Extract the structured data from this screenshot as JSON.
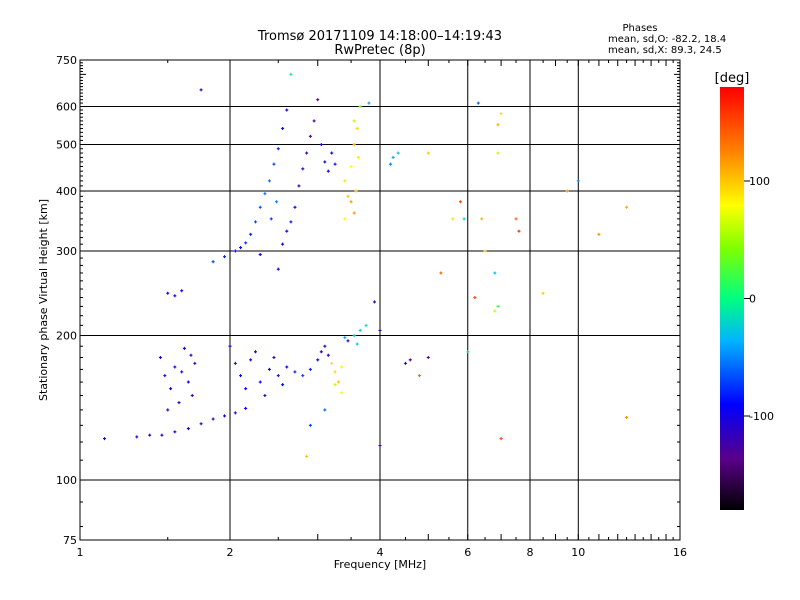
{
  "chart_data": {
    "type": "scatter",
    "title": "Tromsø 20171109 14:18:00–14:19:43",
    "subtitle": "RwPretec (8p)",
    "xlabel": "Frequency [MHz]",
    "ylabel": "Stationary phase Virtual Height [km]",
    "x_scale": "log",
    "y_scale": "log",
    "xlim": [
      1,
      16
    ],
    "ylim": [
      75,
      750
    ],
    "x_ticks": [
      1,
      2,
      4,
      6,
      8,
      10,
      16
    ],
    "y_ticks": [
      75,
      100,
      200,
      300,
      400,
      500,
      600,
      750
    ],
    "x_grid": [
      2,
      4,
      6,
      8,
      10
    ],
    "y_grid": [
      100,
      200,
      300,
      400,
      500,
      600
    ],
    "grid": true,
    "stats_heading": "Phases",
    "stats": [
      "mean, sd,O: -82.2, 18.4",
      "mean, sd,X:  89.3, 24.5"
    ],
    "colorbar": {
      "label": "[deg]",
      "range": [
        -180,
        180
      ],
      "ticks": [
        100,
        0,
        -100
      ]
    },
    "series": [
      {
        "points": [
          [
            1.12,
            122,
            -110
          ],
          [
            1.3,
            123,
            -105
          ],
          [
            1.38,
            124,
            -108
          ],
          [
            1.46,
            124,
            -112
          ],
          [
            1.55,
            126,
            -106
          ],
          [
            1.65,
            128,
            -100
          ],
          [
            1.75,
            131,
            -104
          ],
          [
            1.85,
            134,
            -110
          ],
          [
            1.95,
            136,
            -98
          ],
          [
            2.05,
            138,
            -102
          ],
          [
            2.15,
            141,
            -95
          ],
          [
            1.45,
            180,
            -100
          ],
          [
            1.48,
            165,
            -98
          ],
          [
            1.52,
            155,
            -92
          ],
          [
            1.55,
            172,
            -105
          ],
          [
            1.58,
            145,
            -108
          ],
          [
            1.62,
            188,
            -95
          ],
          [
            1.65,
            160,
            -100
          ],
          [
            1.68,
            150,
            -115
          ],
          [
            1.7,
            175,
            -110
          ],
          [
            1.5,
            140,
            -120
          ],
          [
            1.6,
            168,
            -90
          ],
          [
            1.67,
            182,
            -102
          ],
          [
            2.0,
            190,
            -100
          ],
          [
            2.05,
            175,
            -98
          ],
          [
            2.1,
            165,
            -90
          ],
          [
            2.15,
            155,
            -95
          ],
          [
            2.2,
            178,
            -105
          ],
          [
            2.25,
            185,
            -100
          ],
          [
            2.3,
            160,
            -94
          ],
          [
            2.35,
            150,
            -108
          ],
          [
            2.4,
            170,
            -102
          ],
          [
            2.45,
            180,
            -96
          ],
          [
            2.5,
            165,
            -110
          ],
          [
            2.55,
            158,
            -88
          ],
          [
            2.6,
            172,
            -92
          ],
          [
            2.7,
            168,
            -85
          ],
          [
            2.8,
            165,
            -75
          ],
          [
            2.9,
            170,
            -80
          ],
          [
            3.0,
            178,
            -95
          ],
          [
            3.05,
            185,
            -100
          ],
          [
            3.1,
            190,
            -105
          ],
          [
            3.15,
            182,
            -110
          ],
          [
            3.2,
            175,
            90
          ],
          [
            3.25,
            168,
            95
          ],
          [
            3.3,
            160,
            100
          ],
          [
            3.35,
            152,
            80
          ],
          [
            3.25,
            158,
            60
          ],
          [
            3.35,
            172,
            75
          ],
          [
            3.45,
            195,
            -120
          ],
          [
            3.55,
            200,
            -30
          ],
          [
            3.65,
            205,
            -20
          ],
          [
            3.75,
            210,
            -10
          ],
          [
            3.4,
            198,
            -40
          ],
          [
            3.6,
            192,
            -25
          ],
          [
            4.0,
            205,
            -110
          ],
          [
            3.9,
            235,
            -120
          ],
          [
            4.0,
            118,
            -120
          ],
          [
            2.85,
            112,
            100
          ],
          [
            1.85,
            285,
            -70
          ],
          [
            1.95,
            292,
            -80
          ],
          [
            2.05,
            300,
            -90
          ],
          [
            2.1,
            305,
            -85
          ],
          [
            2.15,
            312,
            -75
          ],
          [
            2.2,
            325,
            -80
          ],
          [
            2.25,
            345,
            -70
          ],
          [
            2.3,
            370,
            -65
          ],
          [
            2.35,
            395,
            -55
          ],
          [
            2.4,
            420,
            -60
          ],
          [
            2.45,
            455,
            -70
          ],
          [
            2.5,
            490,
            -80
          ],
          [
            2.55,
            540,
            -85
          ],
          [
            2.6,
            590,
            -100
          ],
          [
            2.48,
            380,
            -50
          ],
          [
            2.42,
            350,
            -75
          ],
          [
            2.55,
            310,
            -100
          ],
          [
            2.6,
            330,
            -90
          ],
          [
            2.65,
            345,
            -85
          ],
          [
            2.7,
            370,
            -88
          ],
          [
            2.75,
            410,
            -110
          ],
          [
            2.8,
            445,
            -115
          ],
          [
            2.85,
            480,
            -120
          ],
          [
            2.9,
            520,
            -125
          ],
          [
            2.95,
            560,
            -130
          ],
          [
            3.0,
            620,
            -135
          ],
          [
            3.05,
            500,
            -110
          ],
          [
            3.1,
            460,
            -100
          ],
          [
            3.15,
            440,
            -95
          ],
          [
            3.2,
            480,
            -90
          ],
          [
            3.25,
            455,
            -85
          ],
          [
            2.5,
            275,
            -100
          ],
          [
            2.3,
            295,
            -95
          ],
          [
            1.75,
            650,
            -120
          ],
          [
            2.65,
            700,
            -10
          ],
          [
            1.5,
            245,
            -110
          ],
          [
            1.55,
            242,
            -100
          ],
          [
            1.6,
            248,
            -105
          ],
          [
            3.4,
            420,
            90
          ],
          [
            3.45,
            390,
            100
          ],
          [
            3.5,
            450,
            80
          ],
          [
            3.55,
            500,
            110
          ],
          [
            3.6,
            540,
            95
          ],
          [
            3.62,
            470,
            70
          ],
          [
            3.58,
            400,
            105
          ],
          [
            3.65,
            600,
            40
          ],
          [
            3.5,
            380,
            115
          ],
          [
            3.55,
            360,
            120
          ],
          [
            3.4,
            350,
            85
          ],
          [
            3.55,
            560,
            60
          ],
          [
            3.8,
            610,
            -40
          ],
          [
            4.25,
            470,
            -40
          ],
          [
            4.35,
            480,
            -30
          ],
          [
            4.2,
            455,
            -50
          ],
          [
            5.0,
            480,
            100
          ],
          [
            5.3,
            270,
            140
          ],
          [
            5.8,
            380,
            150
          ],
          [
            5.6,
            350,
            90
          ],
          [
            5.9,
            350,
            -20
          ],
          [
            6.4,
            350,
            110
          ],
          [
            6.5,
            300,
            100
          ],
          [
            6.2,
            240,
            150
          ],
          [
            6.8,
            270,
            -30
          ],
          [
            6.9,
            230,
            20
          ],
          [
            6.8,
            225,
            60
          ],
          [
            6.3,
            610,
            -60
          ],
          [
            6.9,
            550,
            110
          ],
          [
            7.0,
            580,
            90
          ],
          [
            6.9,
            480,
            60
          ],
          [
            7.5,
            350,
            140
          ],
          [
            7.6,
            330,
            160
          ],
          [
            8.5,
            245,
            100
          ],
          [
            9.5,
            400,
            120
          ],
          [
            10.0,
            420,
            -50
          ],
          [
            11.0,
            325,
            120
          ],
          [
            12.5,
            370,
            110
          ],
          [
            12.5,
            135,
            120
          ],
          [
            7.0,
            122,
            150
          ],
          [
            4.5,
            175,
            -110
          ],
          [
            4.6,
            178,
            -140
          ],
          [
            5.0,
            180,
            -130
          ],
          [
            4.8,
            165,
            140
          ],
          [
            6.0,
            185,
            -10
          ],
          [
            2.9,
            130,
            -70
          ],
          [
            3.1,
            140,
            -60
          ]
        ]
      }
    ]
  }
}
